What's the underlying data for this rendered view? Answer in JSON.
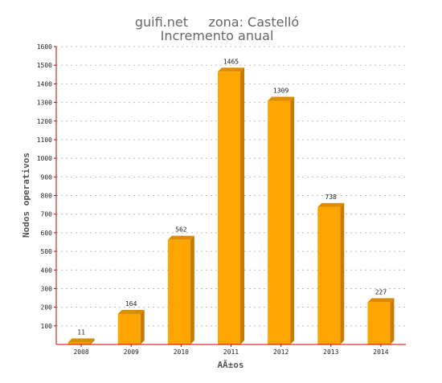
{
  "chart_data": {
    "type": "bar",
    "title_line1": "guifi.net     zona: Castelló",
    "title_line2": "Incremento anual",
    "xlabel": "AÃ±os",
    "ylabel": "Nodos operativos",
    "categories": [
      "2008",
      "2009",
      "2010",
      "2011",
      "2012",
      "2013",
      "2014"
    ],
    "values": [
      11,
      164,
      562,
      1465,
      1309,
      738,
      227
    ],
    "value_labels": [
      "11",
      "164",
      "562",
      "1465",
      "1309",
      "738",
      "227"
    ],
    "yticks": [
      "100",
      "200",
      "300",
      "400",
      "500",
      "600",
      "700",
      "800",
      "900",
      "1000",
      "1100",
      "1200",
      "1300",
      "1400",
      "1500",
      "1600"
    ],
    "ylim": [
      0,
      1600
    ],
    "grid": true,
    "colors": {
      "bar_front": "#ffa500",
      "bar_side": "#c77a00",
      "bar_top": "#dd8c00",
      "axis": "#cc0000",
      "grid": "#bbbbbb"
    }
  }
}
